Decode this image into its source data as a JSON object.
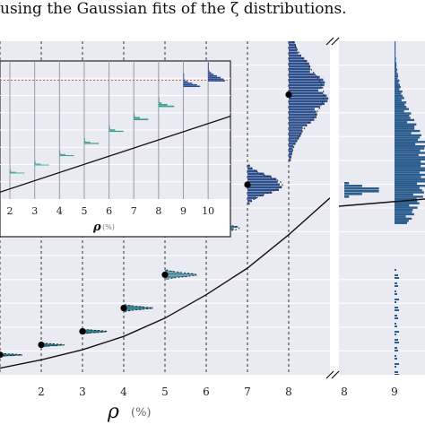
{
  "caption": "using the Gaussian fits of the ζ distributions.",
  "chart_data": [
    {
      "id": "main",
      "type": "histogram-ridgeline",
      "xlabel": "ρ",
      "xunit": "(%)",
      "x_ticks": [
        "2",
        "3",
        "4",
        "5",
        "6",
        "7",
        "8"
      ],
      "xlim": [
        1.0,
        9.0
      ],
      "grid": true,
      "distributions": [
        {
          "rho": 1,
          "mean_y": 0.06,
          "width": 0.5,
          "height": 0.01
        },
        {
          "rho": 2,
          "mean_y": 0.09,
          "width": 0.55,
          "height": 0.012
        },
        {
          "rho": 3,
          "mean_y": 0.13,
          "width": 0.6,
          "height": 0.015
        },
        {
          "rho": 4,
          "mean_y": 0.2,
          "width": 0.65,
          "height": 0.022
        },
        {
          "rho": 5,
          "mean_y": 0.3,
          "width": 0.75,
          "height": 0.03
        },
        {
          "rho": 6,
          "mean_y": 0.44,
          "width": 0.8,
          "height": 0.05
        },
        {
          "rho": 7,
          "mean_y": 0.57,
          "width": 0.85,
          "height": 0.12
        },
        {
          "rho": 8,
          "mean_y": 0.84,
          "width": 0.85,
          "height": 0.4
        }
      ],
      "fit_curve": [
        [
          1.0,
          0.02
        ],
        [
          2,
          0.045
        ],
        [
          3,
          0.075
        ],
        [
          4,
          0.115
        ],
        [
          5,
          0.17
        ],
        [
          6,
          0.24
        ],
        [
          7,
          0.32
        ],
        [
          8,
          0.42
        ],
        [
          9,
          0.53
        ]
      ],
      "colors": {
        "bars": "#2a788e",
        "bars_high": "#2c4f8c",
        "fit": "#111111",
        "grid": "#333333",
        "background": "#eaeaf2"
      }
    },
    {
      "id": "side",
      "type": "histogram",
      "x_ticks": [
        "8",
        "9"
      ],
      "colors": {
        "bars": "#2c5d8c",
        "background": "#eaeaf2"
      }
    },
    {
      "id": "inset",
      "type": "histogram-ridgeline",
      "xlabel": "ρ",
      "xunit": "(%)",
      "x_ticks": [
        "2",
        "3",
        "4",
        "5",
        "6",
        "7",
        "8",
        "9",
        "10"
      ],
      "xlim": [
        1.6,
        10.9
      ],
      "reference_line": 0.86,
      "distributions": [
        {
          "rho": 1,
          "mean_y": 0.15,
          "height": 0.03
        },
        {
          "rho": 2,
          "mean_y": 0.2,
          "height": 0.03
        },
        {
          "rho": 3,
          "mean_y": 0.26,
          "height": 0.035
        },
        {
          "rho": 4,
          "mean_y": 0.33,
          "height": 0.04
        },
        {
          "rho": 5,
          "mean_y": 0.42,
          "height": 0.045
        },
        {
          "rho": 6,
          "mean_y": 0.51,
          "height": 0.05
        },
        {
          "rho": 7,
          "mean_y": 0.6,
          "height": 0.06
        },
        {
          "rho": 8,
          "mean_y": 0.7,
          "height": 0.07
        },
        {
          "rho": 9,
          "mean_y": 0.86,
          "height": 0.1
        },
        {
          "rho": 10,
          "mean_y": 0.92,
          "height": 0.14
        }
      ],
      "fit_curve": [
        [
          1.6,
          0.05
        ],
        [
          10.9,
          0.6
        ]
      ],
      "colors": {
        "bars": "#3b9f8c",
        "bars_high": "#2f4d8f",
        "fit": "#111111",
        "reference": "#e05a5a",
        "background": "#eaeaf2"
      }
    }
  ]
}
